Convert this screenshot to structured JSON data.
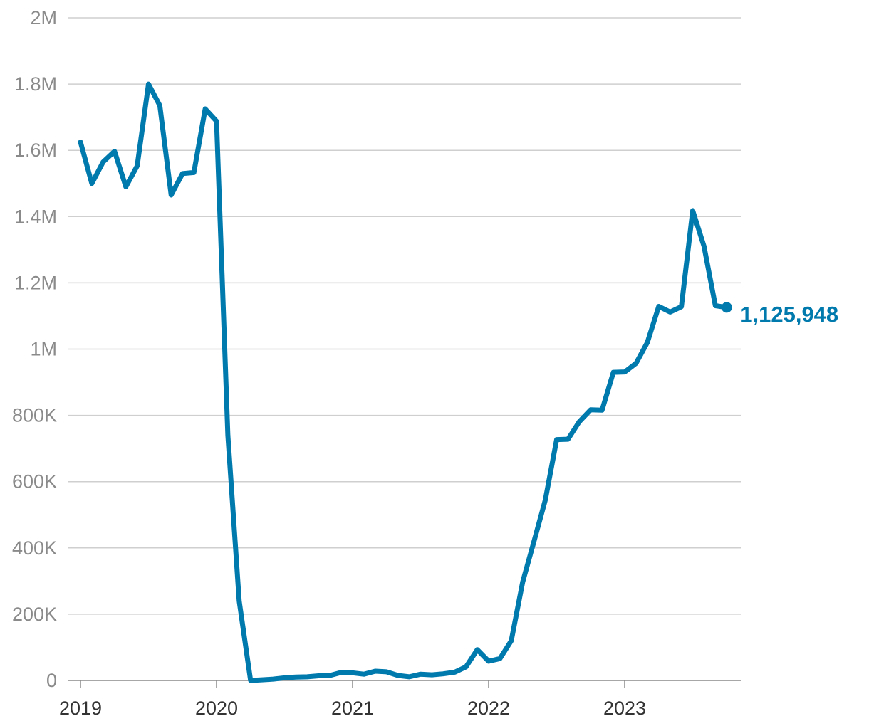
{
  "chart_data": {
    "type": "line",
    "title": "",
    "xlabel": "",
    "ylabel": "",
    "ylim": [
      0,
      2000000
    ],
    "y_ticks": [
      {
        "value": 0,
        "label": "0"
      },
      {
        "value": 200000,
        "label": "200K"
      },
      {
        "value": 400000,
        "label": "400K"
      },
      {
        "value": 600000,
        "label": "600K"
      },
      {
        "value": 800000,
        "label": "800K"
      },
      {
        "value": 1000000,
        "label": "1M"
      },
      {
        "value": 1200000,
        "label": "1.2M"
      },
      {
        "value": 1400000,
        "label": "1.4M"
      },
      {
        "value": 1600000,
        "label": "1.6M"
      },
      {
        "value": 1800000,
        "label": "1.8M"
      },
      {
        "value": 2000000,
        "label": "2M"
      }
    ],
    "x_ticks": [
      {
        "value": "2019-01",
        "label": "2019"
      },
      {
        "value": "2020-01",
        "label": "2020"
      },
      {
        "value": "2021-01",
        "label": "2021"
      },
      {
        "value": "2022-01",
        "label": "2022"
      },
      {
        "value": "2023-01",
        "label": "2023"
      }
    ],
    "x_range": [
      "2019-01",
      "2023-12"
    ],
    "grid": true,
    "line_color": "#0079ad",
    "end_label": "1,125,948",
    "series": [
      {
        "x": [
          "2019-01",
          "2019-02",
          "2019-03",
          "2019-04",
          "2019-05",
          "2019-06",
          "2019-07",
          "2019-08",
          "2019-09",
          "2019-10",
          "2019-11",
          "2019-12",
          "2020-01",
          "2020-02",
          "2020-03",
          "2020-04",
          "2020-05",
          "2020-06",
          "2020-07",
          "2020-08",
          "2020-09",
          "2020-10",
          "2020-11",
          "2020-12",
          "2021-01",
          "2021-02",
          "2021-03",
          "2021-04",
          "2021-05",
          "2021-06",
          "2021-07",
          "2021-08",
          "2021-09",
          "2021-10",
          "2021-11",
          "2021-12",
          "2022-01",
          "2022-02",
          "2022-03",
          "2022-04",
          "2022-05",
          "2022-06",
          "2022-07",
          "2022-08",
          "2022-09",
          "2022-10",
          "2022-11",
          "2022-12",
          "2023-01",
          "2023-02",
          "2023-03",
          "2023-04",
          "2023-05",
          "2023-06",
          "2023-07",
          "2023-08",
          "2023-09",
          "2023-10"
        ],
        "values": [
          1625000,
          1500000,
          1565000,
          1597000,
          1490000,
          1553000,
          1800000,
          1735000,
          1465000,
          1530000,
          1533000,
          1725000,
          1688000,
          740000,
          240000,
          0,
          2000,
          4000,
          8000,
          10000,
          11000,
          14000,
          15000,
          24000,
          23000,
          19000,
          28000,
          26000,
          15000,
          11000,
          19000,
          17000,
          20000,
          25000,
          41000,
          93000,
          58000,
          66000,
          120000,
          297000,
          420000,
          545000,
          727000,
          728000,
          781000,
          817000,
          816000,
          930000,
          931000,
          957000,
          1020000,
          1129000,
          1112000,
          1128000,
          1418000,
          1310000,
          1131000,
          1125948
        ]
      }
    ]
  }
}
